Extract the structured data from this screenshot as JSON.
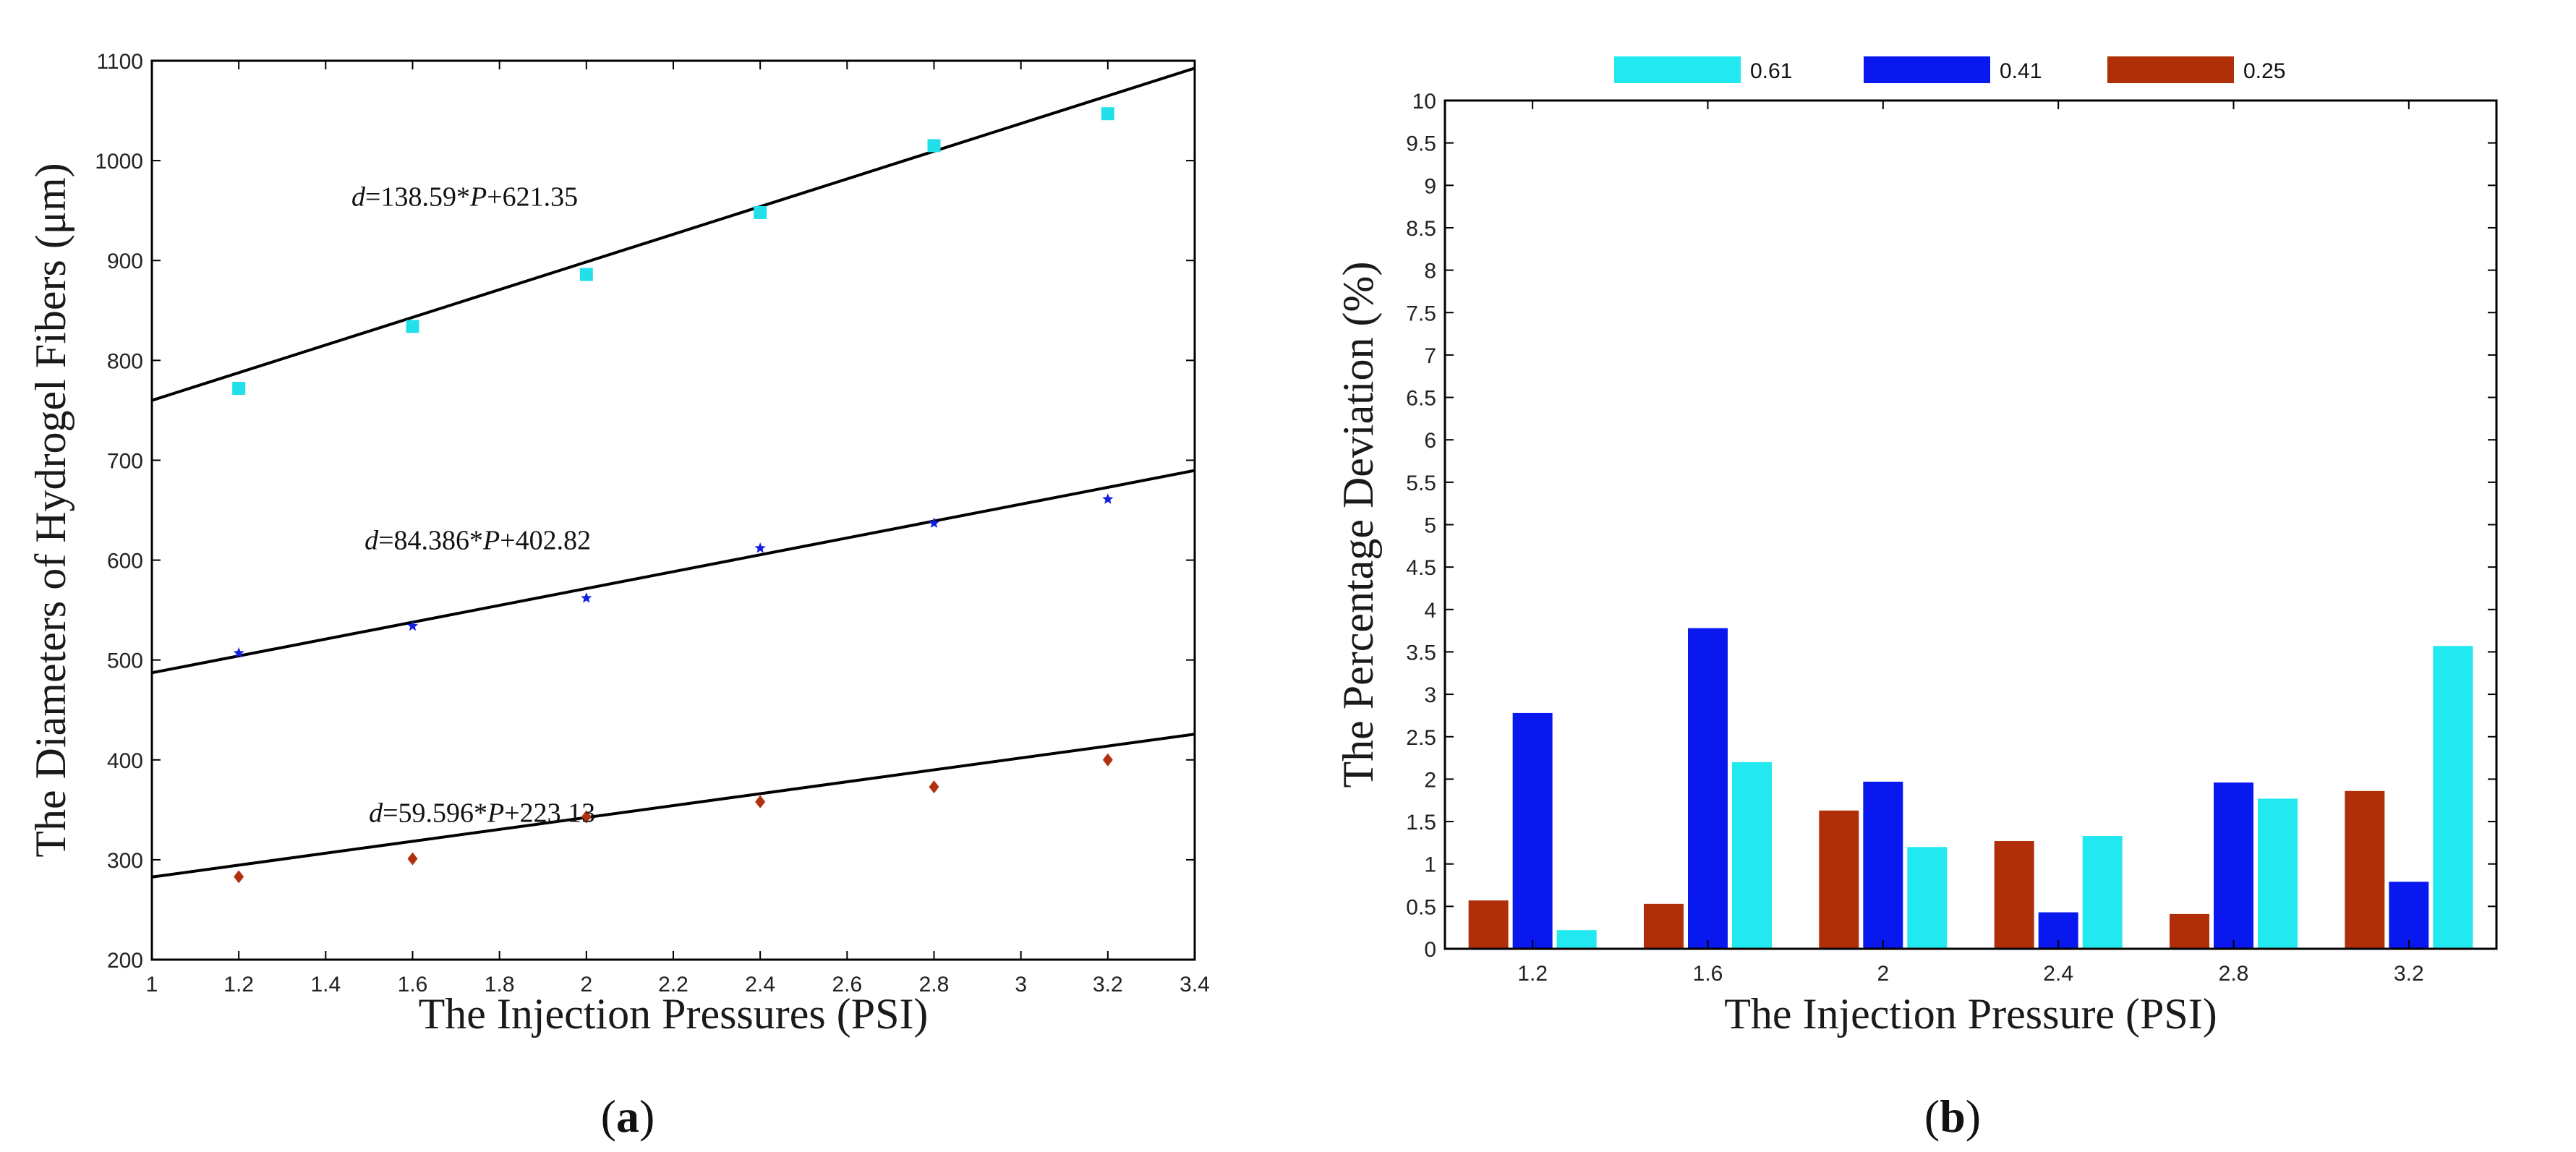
{
  "chart_data": [
    {
      "id": "a",
      "type": "scatter",
      "panel_label": "a",
      "xlabel": "The Injection Pressures (PSI)",
      "ylabel": "The Diameters of Hydrogel Fibers (μm)",
      "xlim": [
        1,
        3.4
      ],
      "ylim": [
        200,
        1100
      ],
      "x_ticks": [
        "1",
        "1.2",
        "1.4",
        "1.6",
        "1.8",
        "2",
        "2.2",
        "2.4",
        "2.6",
        "2.8",
        "3",
        "3.2",
        "3.4"
      ],
      "y_ticks": [
        "200",
        "300",
        "400",
        "500",
        "600",
        "700",
        "800",
        "900",
        "1000",
        "1100"
      ],
      "x": [
        1.2,
        1.6,
        2.0,
        2.4,
        2.8,
        3.2
      ],
      "series": [
        {
          "name": "0.61",
          "color": "#22e0ea",
          "marker": "square",
          "values": [
            772,
            834,
            886,
            948,
            1015,
            1047
          ],
          "fit": {
            "slope": 138.59,
            "intercept": 621.35
          },
          "equation": {
            "lhs": "d",
            "mid": "=138.59*",
            "var": "P",
            "rhs": "+621.35",
            "at_x": 1.72,
            "at_y": 955
          }
        },
        {
          "name": "0.41",
          "color": "#1420e0",
          "marker": "star",
          "values": [
            507,
            534,
            562,
            612,
            637,
            661
          ],
          "fit": {
            "slope": 84.386,
            "intercept": 402.82
          },
          "equation": {
            "lhs": "d",
            "mid": "=84.386*",
            "var": "P",
            "rhs": "+402.82",
            "at_x": 1.75,
            "at_y": 611
          }
        },
        {
          "name": "0.25",
          "color": "#b03010",
          "marker": "diamond",
          "values": [
            283,
            301,
            343,
            358,
            373,
            400
          ],
          "fit": {
            "slope": 59.596,
            "intercept": 223.13
          },
          "equation": {
            "lhs": "d",
            "mid": "=59.596*",
            "var": "P",
            "rhs": "+223.13",
            "at_x": 1.76,
            "at_y": 338
          }
        }
      ]
    },
    {
      "id": "b",
      "type": "bar",
      "panel_label": "b",
      "xlabel": "The Injection Pressure (PSI)",
      "ylabel": "The Percentage Deviation (%)",
      "ylim": [
        0,
        10
      ],
      "y_ticks": [
        "0",
        "0.5",
        "1",
        "1.5",
        "2",
        "2.5",
        "3",
        "3.5",
        "4",
        "4.5",
        "5",
        "5.5",
        "6",
        "6.5",
        "7",
        "7.5",
        "8",
        "8.5",
        "9",
        "9.5",
        "10"
      ],
      "categories": [
        "1.2",
        "1.6",
        "2",
        "2.4",
        "2.8",
        "3.2"
      ],
      "legend_position": "top",
      "series": [
        {
          "name": "0.61",
          "color": "#22e8f0",
          "values": [
            0.22,
            2.2,
            1.2,
            1.33,
            1.77,
            3.57
          ]
        },
        {
          "name": "0.41",
          "color": "#0a18f0",
          "values": [
            2.78,
            3.78,
            1.97,
            0.43,
            1.96,
            0.79
          ]
        },
        {
          "name": "0.25",
          "color": "#b02e08",
          "values": [
            0.57,
            0.53,
            1.63,
            1.27,
            0.41,
            1.86
          ]
        }
      ],
      "draw_order": [
        "0.25",
        "0.41",
        "0.61"
      ]
    }
  ]
}
